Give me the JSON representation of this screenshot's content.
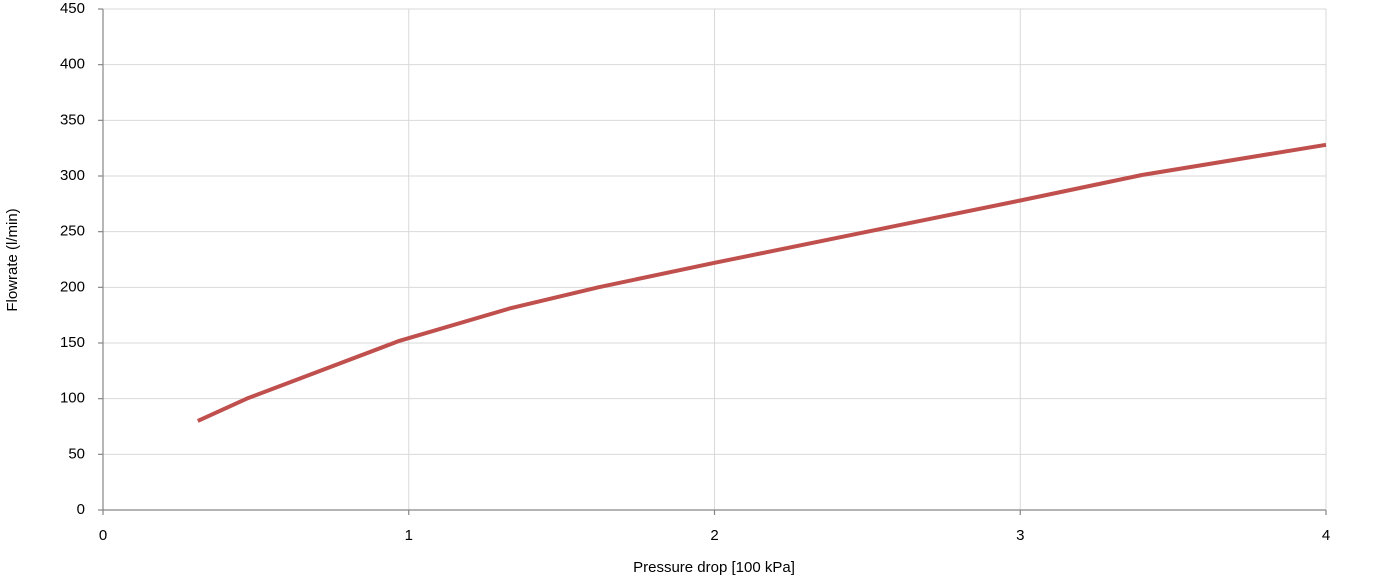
{
  "chart_data": {
    "type": "line",
    "x_label": "Pressure drop [100 kPa]",
    "y_label": "Flowrate (l/min)",
    "series": [
      {
        "color": "#c0504d",
        "x": [
          0.31,
          0.47,
          0.97,
          1.33,
          1.62,
          2.0,
          2.5,
          3.0,
          3.4,
          4.0
        ],
        "values": [
          80,
          100,
          152,
          181,
          200,
          222,
          250,
          278,
          301,
          328
        ]
      }
    ],
    "xlim": [
      0,
      4
    ],
    "xticks": [
      0,
      1,
      2,
      3,
      4
    ],
    "ylim": [
      0,
      450
    ],
    "yticks": [
      0,
      50,
      100,
      150,
      200,
      250,
      300,
      350,
      400,
      450
    ],
    "grid": true
  }
}
